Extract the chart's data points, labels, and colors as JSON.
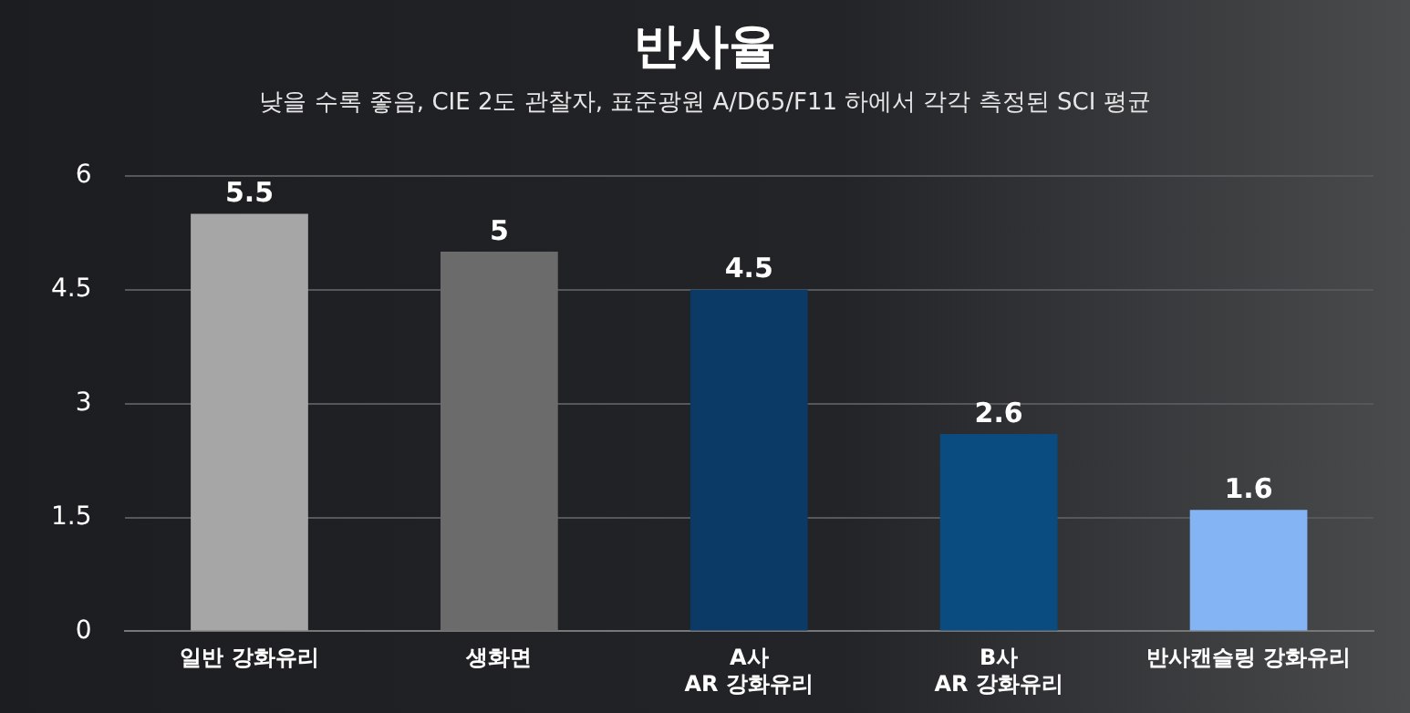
{
  "chart_data": {
    "type": "bar",
    "title": "반사율",
    "subtitle": "낮을 수록 좋음, CIE 2도 관찰자, 표준광원 A/D65/F11 하에서 각각 측정된 SCI 평균",
    "categories": [
      "일반 강화유리",
      "생화면",
      "A사\nAR 강화유리",
      "B사\nAR 강화유리",
      "반사캔슬링 강화유리"
    ],
    "values": [
      5.5,
      5,
      4.5,
      2.6,
      1.6
    ],
    "colors": [
      "#a6a6a6",
      "#6b6b6b",
      "#0b3a66",
      "#0a4c80",
      "#85b4f5"
    ],
    "ylim": [
      0,
      6
    ],
    "yticks": [
      0,
      1.5,
      3,
      4.5,
      6
    ],
    "grid": "y",
    "data_labels": true
  }
}
